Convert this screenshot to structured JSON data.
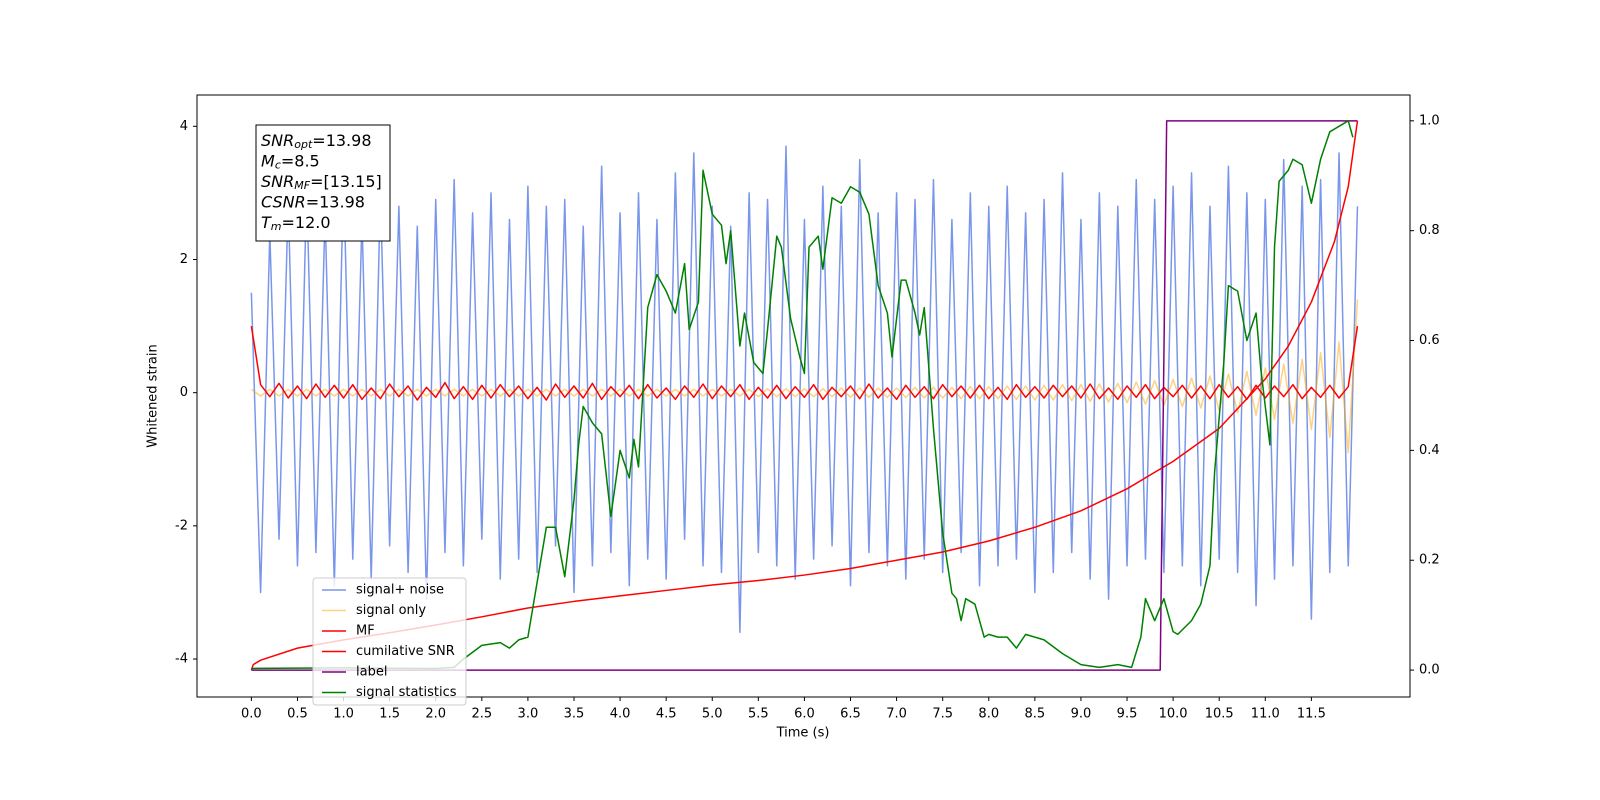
{
  "chart_data": {
    "type": "line",
    "xlabel": "Time (s)",
    "ylabel": "Whitened strain",
    "xlim": [
      -0.59,
      12.57
    ],
    "ylim": [
      -4.57,
      4.47
    ],
    "y2lim": [
      -0.049,
      1.047
    ],
    "xticks": [
      {
        "value": 0,
        "label": "0.0"
      },
      0.5,
      {
        "value": 1,
        "label": "1.0"
      },
      1.5,
      {
        "value": 2,
        "label": "2.0"
      },
      2.5,
      {
        "value": 3,
        "label": "3.0"
      },
      3.5,
      {
        "value": 4,
        "label": "4.0"
      },
      4.5,
      {
        "value": 5,
        "label": "5.0"
      },
      5.5,
      {
        "value": 6,
        "label": "6.0"
      },
      6.5,
      {
        "value": 7,
        "label": "7.0"
      },
      7.5,
      {
        "value": 8,
        "label": "8.0"
      },
      8.5,
      {
        "value": 9,
        "label": "9.0"
      },
      9.5,
      {
        "value": 10,
        "label": "10.0"
      },
      10.5,
      {
        "value": 11,
        "label": "11.0"
      },
      11.5
    ],
    "yticks": [
      -4,
      -2,
      0,
      2,
      4
    ],
    "y2ticks": [
      {
        "value": 0,
        "label": "0.0"
      },
      0.2,
      0.4,
      0.6,
      0.8,
      {
        "value": 1,
        "label": "1.0"
      }
    ],
    "legend": "lower left",
    "annotation": [
      {
        "base": "SNR",
        "sub": "opt",
        "rest": "=13.98"
      },
      {
        "base": "M",
        "sub": "c",
        "rest": "=8.5"
      },
      {
        "base": "SNR",
        "sub": "MF",
        "rest": "=[13.15]"
      },
      {
        "base": "CSNR",
        "rest": "=13.98"
      },
      {
        "base": "T",
        "sub": "m",
        "rest": "=12.0"
      }
    ],
    "x": [
      0,
      0.1,
      0.2,
      0.3,
      0.4,
      0.5,
      0.6,
      0.7,
      0.8,
      0.9,
      1,
      1.1,
      1.2,
      1.3,
      1.4,
      1.5,
      1.6,
      1.7,
      1.8,
      1.9,
      2,
      2.1,
      2.2,
      2.3,
      2.4,
      2.5,
      2.6,
      2.7,
      2.8,
      2.9,
      3,
      3.1,
      3.2,
      3.3,
      3.4,
      3.5,
      3.6,
      3.7,
      3.8,
      3.9,
      4,
      4.1,
      4.2,
      4.3,
      4.4,
      4.5,
      4.6,
      4.7,
      4.8,
      4.9,
      5,
      5.1,
      5.2,
      5.3,
      5.4,
      5.5,
      5.6,
      5.7,
      5.8,
      5.9,
      6,
      6.1,
      6.2,
      6.3,
      6.4,
      6.5,
      6.6,
      6.7,
      6.8,
      6.9,
      7,
      7.1,
      7.2,
      7.3,
      7.4,
      7.5,
      7.6,
      7.7,
      7.8,
      7.9,
      8,
      8.1,
      8.2,
      8.3,
      8.4,
      8.5,
      8.6,
      8.7,
      8.8,
      8.9,
      9,
      9.1,
      9.2,
      9.3,
      9.4,
      9.5,
      9.6,
      9.7,
      9.8,
      9.9,
      10,
      10.1,
      10.2,
      10.3,
      10.4,
      10.5,
      10.6,
      10.7,
      10.8,
      10.9,
      11,
      11.1,
      11.2,
      11.3,
      11.4,
      11.5,
      11.6,
      11.7,
      11.8,
      11.9,
      12
    ],
    "series": [
      {
        "name": "signal+ noise",
        "color": "royalblue",
        "alpha": 0.7,
        "values": [
          1.5,
          -3.0,
          2.4,
          -2.2,
          2.9,
          -2.6,
          3.1,
          -2.4,
          2.7,
          -2.9,
          3.3,
          -2.5,
          2.6,
          -2.8,
          3.0,
          -2.3,
          2.8,
          -2.7,
          2.5,
          -3.1,
          2.9,
          -2.4,
          3.2,
          -2.6,
          2.7,
          -2.2,
          3.0,
          -2.8,
          2.6,
          -2.5,
          3.1,
          -2.7,
          2.8,
          -2.3,
          2.9,
          -3.0,
          2.5,
          -2.6,
          3.4,
          -2.4,
          2.7,
          -2.9,
          3.0,
          -2.5,
          2.6,
          -2.8,
          3.3,
          -2.2,
          3.6,
          -2.6,
          2.8,
          -2.7,
          2.5,
          -3.6,
          3.0,
          -2.4,
          2.9,
          -2.6,
          3.7,
          -2.8,
          2.6,
          -2.5,
          3.1,
          -2.3,
          2.8,
          -2.9,
          3.5,
          -2.4,
          2.7,
          -2.6,
          3.0,
          -2.8,
          2.9,
          -2.5,
          3.2,
          -2.7,
          2.6,
          -2.4,
          3.0,
          -2.9,
          2.8,
          -2.6,
          3.1,
          -2.5,
          2.7,
          -3.0,
          2.9,
          -2.7,
          3.3,
          -2.4,
          2.6,
          -2.8,
          3.0,
          -3.1,
          2.8,
          -2.6,
          3.2,
          -2.5,
          2.9,
          -2.7,
          3.1,
          -2.6,
          3.3,
          -2.9,
          2.8,
          -2.5,
          3.4,
          -2.7,
          3.0,
          -3.2,
          2.9,
          -2.8,
          3.5,
          -2.6,
          3.1,
          -3.4,
          3.2,
          -2.7,
          3.6,
          -2.6,
          2.8
        ]
      },
      {
        "name": "signal only",
        "color": "orange",
        "alpha": 0.5,
        "values": [
          0.05,
          -0.05,
          0.05,
          -0.05,
          0.05,
          -0.05,
          0.05,
          -0.05,
          0.05,
          -0.05,
          0.05,
          -0.05,
          0.05,
          -0.05,
          0.05,
          -0.05,
          0.05,
          -0.05,
          0.05,
          -0.05,
          0.05,
          -0.05,
          0.05,
          -0.05,
          0.05,
          -0.05,
          0.05,
          -0.05,
          0.05,
          -0.05,
          0.05,
          -0.05,
          0.05,
          -0.05,
          0.05,
          -0.05,
          0.05,
          -0.05,
          0.05,
          -0.05,
          0.05,
          -0.05,
          0.05,
          -0.05,
          0.05,
          -0.05,
          0.05,
          -0.05,
          0.05,
          -0.05,
          0.05,
          -0.05,
          0.05,
          -0.05,
          0.05,
          -0.06,
          0.06,
          -0.06,
          0.06,
          -0.06,
          0.06,
          -0.06,
          0.06,
          -0.06,
          0.07,
          -0.07,
          0.07,
          -0.07,
          0.07,
          -0.07,
          0.07,
          -0.07,
          0.08,
          -0.08,
          0.08,
          -0.08,
          0.08,
          -0.09,
          0.09,
          -0.09,
          0.09,
          -0.09,
          0.1,
          -0.1,
          0.1,
          -0.11,
          0.11,
          -0.11,
          0.12,
          -0.12,
          0.12,
          -0.13,
          0.13,
          -0.14,
          0.14,
          -0.15,
          0.16,
          -0.17,
          0.18,
          -0.19,
          0.2,
          -0.21,
          0.22,
          -0.23,
          0.25,
          -0.27,
          0.28,
          -0.3,
          0.32,
          -0.34,
          0.37,
          -0.4,
          0.43,
          -0.46,
          0.5,
          -0.55,
          0.6,
          -0.67,
          0.76,
          -0.9,
          1.4
        ]
      },
      {
        "name": "MF",
        "color": "red",
        "values": [
          1.0,
          0.12,
          -0.06,
          0.14,
          -0.08,
          0.1,
          -0.09,
          0.13,
          -0.07,
          0.11,
          -0.08,
          0.12,
          -0.1,
          0.07,
          -0.09,
          0.13,
          -0.06,
          0.1,
          -0.11,
          0.08,
          -0.07,
          0.15,
          -0.09,
          0.09,
          -0.1,
          0.11,
          -0.08,
          0.12,
          -0.06,
          0.1,
          -0.09,
          0.08,
          -0.11,
          0.13,
          -0.07,
          0.1,
          -0.08,
          0.14,
          -0.1,
          0.09,
          -0.06,
          0.11,
          -0.09,
          0.12,
          -0.08,
          0.07,
          -0.1,
          0.1,
          -0.07,
          0.13,
          -0.09,
          0.1,
          -0.06,
          0.12,
          -0.1,
          0.08,
          -0.08,
          0.11,
          -0.09,
          0.09,
          -0.07,
          0.12,
          -0.1,
          0.08,
          -0.06,
          0.1,
          -0.09,
          0.13,
          -0.08,
          0.07,
          -0.1,
          0.11,
          -0.07,
          0.09,
          -0.09,
          0.12,
          -0.06,
          0.1,
          -0.08,
          0.11,
          -0.09,
          0.08,
          -0.1,
          0.12,
          -0.07,
          0.09,
          -0.08,
          0.11,
          -0.06,
          0.1,
          -0.08,
          0.13,
          -0.09,
          0.07,
          -0.1,
          0.1,
          -0.07,
          0.12,
          -0.09,
          0.08,
          -0.06,
          0.11,
          -0.08,
          0.1,
          -0.09,
          0.12,
          -0.07,
          0.09,
          -0.1,
          0.11,
          -0.08,
          0.1,
          -0.06,
          0.12,
          -0.09,
          0.08,
          -0.07,
          0.11,
          -0.08,
          0.09,
          1.0
        ]
      },
      {
        "name": "cumilative SNR",
        "color": "red",
        "axis": "y2",
        "x": [
          0,
          0.02,
          0.1,
          0.5,
          1,
          1.5,
          2,
          2.5,
          3,
          3.5,
          4,
          4.5,
          5,
          5.5,
          6,
          6.5,
          7,
          7.5,
          8,
          8.5,
          9,
          9.5,
          10,
          10.5,
          11,
          11.25,
          11.5,
          11.75,
          11.9,
          12
        ],
        "values": [
          0,
          0.01,
          0.018,
          0.04,
          0.055,
          0.068,
          0.082,
          0.097,
          0.113,
          0.125,
          0.135,
          0.145,
          0.155,
          0.163,
          0.173,
          0.185,
          0.2,
          0.215,
          0.235,
          0.26,
          0.29,
          0.33,
          0.38,
          0.44,
          0.53,
          0.59,
          0.67,
          0.78,
          0.88,
          1.0
        ]
      },
      {
        "name": "label",
        "color": "purple",
        "axis": "y2",
        "x": [
          0,
          9.86,
          9.93,
          12
        ],
        "values": [
          0,
          0,
          1,
          1
        ]
      },
      {
        "name": "signal statistics",
        "color": "green",
        "axis": "y2",
        "x": [
          0,
          1,
          2,
          2.2,
          2.3,
          2.5,
          2.7,
          2.8,
          2.9,
          3.0,
          3.1,
          3.2,
          3.3,
          3.4,
          3.5,
          3.55,
          3.6,
          3.7,
          3.8,
          3.9,
          4.0,
          4.1,
          4.15,
          4.2,
          4.3,
          4.4,
          4.5,
          4.6,
          4.7,
          4.75,
          4.85,
          4.9,
          5.0,
          5.1,
          5.15,
          5.2,
          5.3,
          5.35,
          5.45,
          5.55,
          5.6,
          5.7,
          5.75,
          5.85,
          5.95,
          6.0,
          6.05,
          6.15,
          6.2,
          6.3,
          6.4,
          6.5,
          6.6,
          6.7,
          6.8,
          6.9,
          6.95,
          7.05,
          7.1,
          7.2,
          7.25,
          7.3,
          7.4,
          7.5,
          7.6,
          7.65,
          7.7,
          7.75,
          7.85,
          7.95,
          8.0,
          8.1,
          8.2,
          8.3,
          8.4,
          8.6,
          8.8,
          9.0,
          9.2,
          9.4,
          9.55,
          9.65,
          9.7,
          9.8,
          9.9,
          10.0,
          10.05,
          10.2,
          10.3,
          10.4,
          10.45,
          10.55,
          10.6,
          10.7,
          10.8,
          10.9,
          10.95,
          11.0,
          11.05,
          11.1,
          11.15,
          11.25,
          11.3,
          11.4,
          11.5,
          11.6,
          11.7,
          11.8,
          11.9,
          11.95
        ],
        "values": [
          0.003,
          0.004,
          0.003,
          0.005,
          0.02,
          0.045,
          0.05,
          0.04,
          0.055,
          0.06,
          0.16,
          0.26,
          0.26,
          0.17,
          0.31,
          0.41,
          0.48,
          0.45,
          0.43,
          0.28,
          0.4,
          0.35,
          0.42,
          0.37,
          0.66,
          0.72,
          0.69,
          0.65,
          0.74,
          0.62,
          0.67,
          0.91,
          0.83,
          0.81,
          0.74,
          0.8,
          0.59,
          0.65,
          0.56,
          0.54,
          0.62,
          0.79,
          0.77,
          0.64,
          0.57,
          0.54,
          0.77,
          0.79,
          0.73,
          0.86,
          0.85,
          0.88,
          0.87,
          0.83,
          0.7,
          0.65,
          0.57,
          0.71,
          0.71,
          0.65,
          0.61,
          0.66,
          0.44,
          0.25,
          0.14,
          0.13,
          0.09,
          0.13,
          0.12,
          0.06,
          0.065,
          0.06,
          0.06,
          0.04,
          0.065,
          0.055,
          0.03,
          0.01,
          0.005,
          0.01,
          0.005,
          0.06,
          0.13,
          0.09,
          0.13,
          0.07,
          0.065,
          0.09,
          0.12,
          0.19,
          0.36,
          0.56,
          0.7,
          0.69,
          0.6,
          0.65,
          0.55,
          0.48,
          0.41,
          0.77,
          0.89,
          0.91,
          0.93,
          0.92,
          0.85,
          0.93,
          0.98,
          0.99,
          1.0,
          0.97
        ]
      }
    ]
  }
}
